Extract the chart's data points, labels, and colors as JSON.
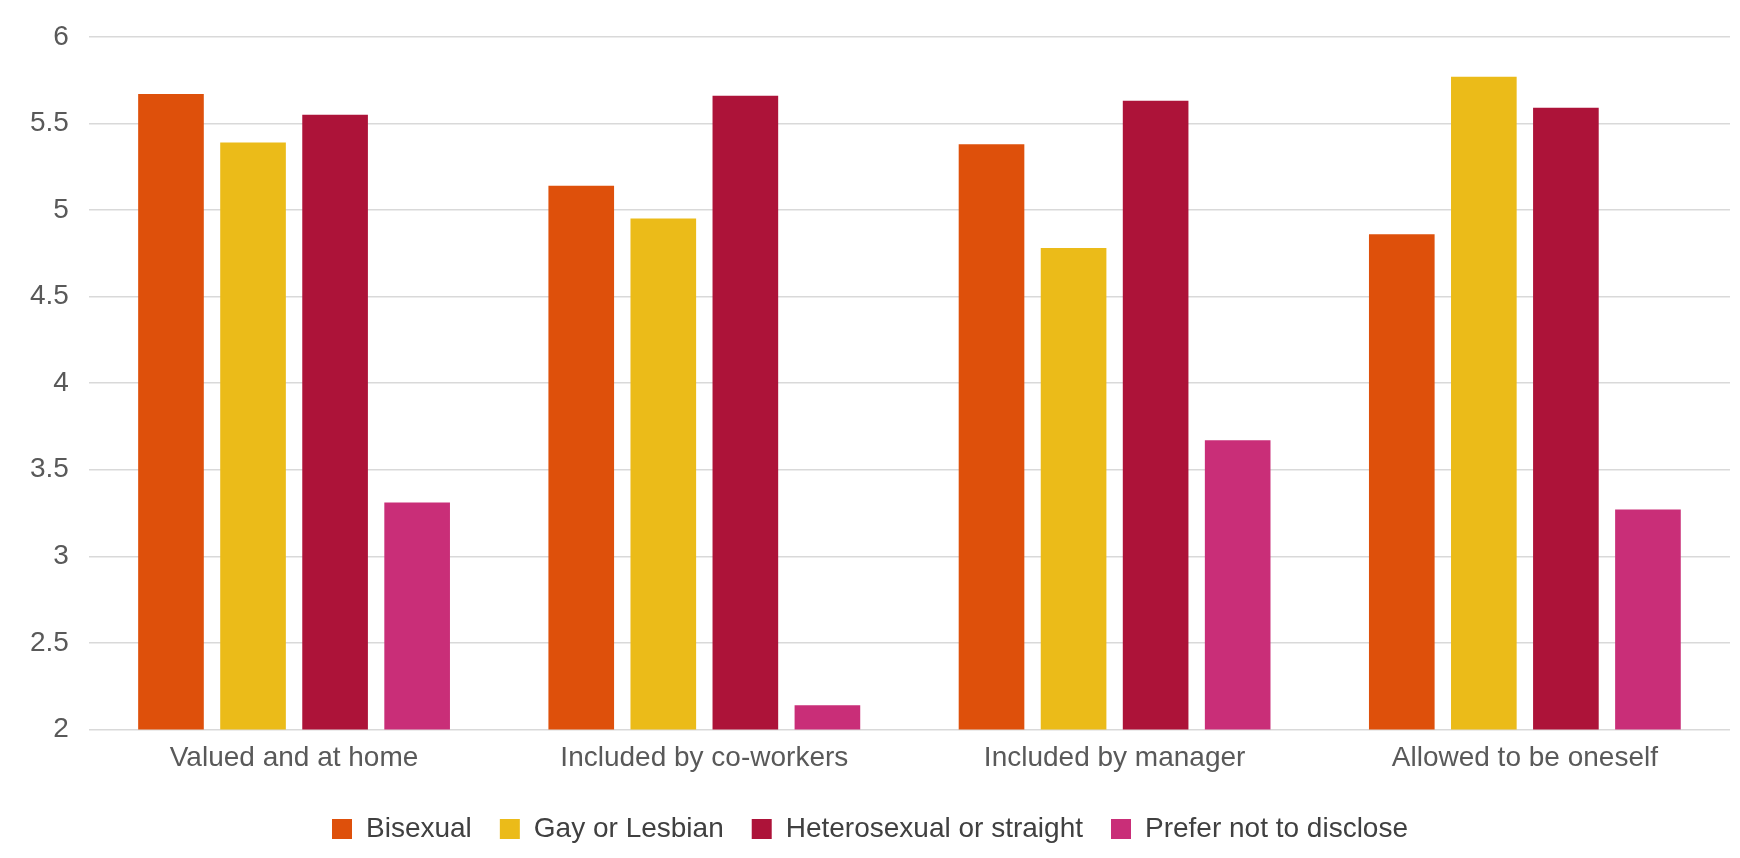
{
  "chart_data": {
    "type": "bar",
    "categories": [
      "Valued and at home",
      "Included by co-workers",
      "Included by manager",
      "Allowed to be oneself"
    ],
    "series": [
      {
        "name": "Bisexual",
        "color": "#de500b",
        "values": [
          5.67,
          5.14,
          5.38,
          4.86
        ]
      },
      {
        "name": "Gay or Lesbian",
        "color": "#ebbb19",
        "values": [
          5.39,
          4.95,
          4.78,
          5.77
        ]
      },
      {
        "name": "Heterosexual or straight",
        "color": "#ad1339",
        "values": [
          5.55,
          5.66,
          5.63,
          5.59
        ]
      },
      {
        "name": "Prefer not to disclose",
        "color": "#c92e78",
        "values": [
          3.31,
          2.14,
          3.67,
          3.27
        ]
      }
    ],
    "ylim": [
      2,
      6
    ],
    "yticks": [
      2,
      2.5,
      3,
      3.5,
      4,
      4.5,
      5,
      5.5,
      6
    ],
    "grid": "y",
    "legend": "bottom"
  }
}
